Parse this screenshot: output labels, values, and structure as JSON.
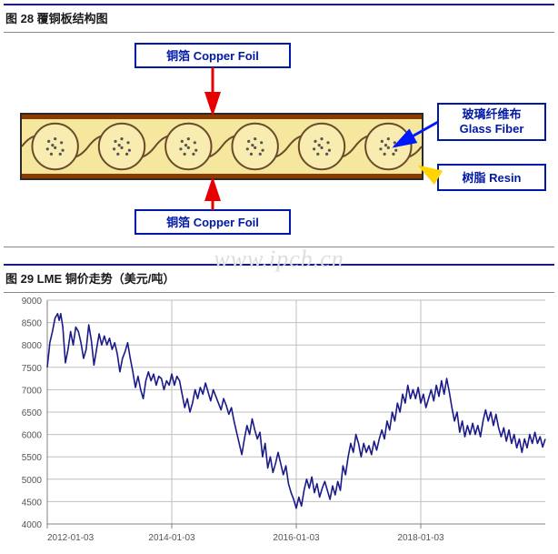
{
  "figure28": {
    "title": "图 28  覆铜板结构图",
    "labels": {
      "copper_top": "铜箔 Copper Foil",
      "copper_bottom": "铜箔 Copper Foil",
      "glass_fiber_zh": "玻璃纤维布",
      "glass_fiber_en": "Glass Fiber",
      "resin_zh": "树脂",
      "resin_en": "Resin"
    },
    "colors": {
      "label_border": "#0018a8",
      "label_text": "#0018a8",
      "arrow_red": "#e60000",
      "arrow_blue": "#0018ff",
      "arrow_yellow": "#ffd400",
      "copper_line": "#8b3a00",
      "resin_fill": "#f5e79e",
      "resin_inner": "#f8ecb0",
      "laminate_border": "#2a2a2a",
      "fiber_line": "#6b4a2a",
      "dot_fill": "#555"
    }
  },
  "figure29": {
    "title": "图 29  LME 铜价走势（美元/吨）",
    "watermark": "www.ipcb.cn",
    "chart": {
      "type": "line",
      "ylim": [
        4000,
        9000
      ],
      "ytick_step": 500,
      "yticks": [
        4000,
        4500,
        5000,
        5500,
        6000,
        6500,
        7000,
        7500,
        8000,
        8500,
        9000
      ],
      "xticks": [
        "2012-01-03",
        "2014-01-03",
        "2016-01-03",
        "2018-01-03"
      ],
      "x_start": "2012-01-03",
      "x_end": "2019-12-31",
      "line_color": "#1a1a8a",
      "line_width": 1.6,
      "grid_color": "#bfbfbf",
      "axis_color": "#808080",
      "background": "#ffffff",
      "label_fontsize": 10,
      "series": [
        [
          0,
          7500
        ],
        [
          0.5,
          8050
        ],
        [
          1,
          8300
        ],
        [
          1.5,
          8600
        ],
        [
          2,
          8700
        ],
        [
          2.3,
          8550
        ],
        [
          2.6,
          8700
        ],
        [
          3,
          8400
        ],
        [
          3.5,
          7600
        ],
        [
          4,
          7900
        ],
        [
          4.5,
          8300
        ],
        [
          5,
          8000
        ],
        [
          5.5,
          8400
        ],
        [
          6,
          8300
        ],
        [
          6.5,
          8050
        ],
        [
          7,
          7700
        ],
        [
          7.5,
          7900
        ],
        [
          8,
          8450
        ],
        [
          8.5,
          8100
        ],
        [
          9,
          7550
        ],
        [
          9.5,
          7900
        ],
        [
          10,
          8250
        ],
        [
          10.5,
          8000
        ],
        [
          11,
          8200
        ],
        [
          11.5,
          8000
        ],
        [
          12,
          8150
        ],
        [
          12.5,
          7900
        ],
        [
          13,
          8050
        ],
        [
          13.5,
          7800
        ],
        [
          14,
          7400
        ],
        [
          14.5,
          7700
        ],
        [
          15,
          7850
        ],
        [
          15.5,
          8050
        ],
        [
          16,
          7700
        ],
        [
          16.5,
          7400
        ],
        [
          17,
          7050
        ],
        [
          17.5,
          7300
        ],
        [
          18,
          7000
        ],
        [
          18.5,
          6800
        ],
        [
          19,
          7200
        ],
        [
          19.5,
          7400
        ],
        [
          20,
          7200
        ],
        [
          20.5,
          7350
        ],
        [
          21,
          7100
        ],
        [
          21.5,
          7300
        ],
        [
          22,
          7250
        ],
        [
          22.5,
          7000
        ],
        [
          23,
          7200
        ],
        [
          23.5,
          7100
        ],
        [
          24,
          7350
        ],
        [
          24.5,
          7100
        ],
        [
          25,
          7300
        ],
        [
          25.5,
          7200
        ],
        [
          26,
          6900
        ],
        [
          26.5,
          6600
        ],
        [
          27,
          6800
        ],
        [
          27.5,
          6500
        ],
        [
          28,
          6700
        ],
        [
          28.5,
          7000
        ],
        [
          29,
          6800
        ],
        [
          29.5,
          7050
        ],
        [
          30,
          6900
        ],
        [
          30.5,
          7150
        ],
        [
          31,
          6950
        ],
        [
          31.5,
          6750
        ],
        [
          32,
          7000
        ],
        [
          32.5,
          6850
        ],
        [
          33,
          6700
        ],
        [
          33.5,
          6550
        ],
        [
          34,
          6800
        ],
        [
          34.5,
          6650
        ],
        [
          35,
          6450
        ],
        [
          35.5,
          6600
        ],
        [
          36,
          6300
        ],
        [
          36.5,
          6050
        ],
        [
          37,
          5800
        ],
        [
          37.5,
          5550
        ],
        [
          38,
          5900
        ],
        [
          38.5,
          6200
        ],
        [
          39,
          6000
        ],
        [
          39.5,
          6350
        ],
        [
          40,
          6100
        ],
        [
          40.5,
          5900
        ],
        [
          41,
          6050
        ],
        [
          41.5,
          5500
        ],
        [
          42,
          5800
        ],
        [
          42.5,
          5250
        ],
        [
          43,
          5500
        ],
        [
          43.5,
          5150
        ],
        [
          44,
          5350
        ],
        [
          44.5,
          5600
        ],
        [
          45,
          5350
        ],
        [
          45.5,
          5100
        ],
        [
          46,
          5300
        ],
        [
          46.5,
          4900
        ],
        [
          47,
          4700
        ],
        [
          47.5,
          4550
        ],
        [
          48,
          4350
        ],
        [
          48.5,
          4600
        ],
        [
          49,
          4400
        ],
        [
          49.5,
          4750
        ],
        [
          50,
          5000
        ],
        [
          50.5,
          4800
        ],
        [
          51,
          5050
        ],
        [
          51.5,
          4700
        ],
        [
          52,
          4900
        ],
        [
          52.5,
          4600
        ],
        [
          53,
          4800
        ],
        [
          53.5,
          4950
        ],
        [
          54,
          4750
        ],
        [
          54.5,
          4550
        ],
        [
          55,
          4850
        ],
        [
          55.5,
          4650
        ],
        [
          56,
          4950
        ],
        [
          56.5,
          4750
        ],
        [
          57,
          5300
        ],
        [
          57.5,
          5100
        ],
        [
          58,
          5500
        ],
        [
          58.5,
          5800
        ],
        [
          59,
          5600
        ],
        [
          59.5,
          6000
        ],
        [
          60,
          5800
        ],
        [
          60.5,
          5500
        ],
        [
          61,
          5800
        ],
        [
          61.5,
          5600
        ],
        [
          62,
          5750
        ],
        [
          62.5,
          5550
        ],
        [
          63,
          5850
        ],
        [
          63.5,
          5650
        ],
        [
          64,
          5900
        ],
        [
          64.5,
          6100
        ],
        [
          65,
          5900
        ],
        [
          65.5,
          6300
        ],
        [
          66,
          6100
        ],
        [
          66.5,
          6500
        ],
        [
          67,
          6300
        ],
        [
          67.5,
          6700
        ],
        [
          68,
          6500
        ],
        [
          68.5,
          6900
        ],
        [
          69,
          6700
        ],
        [
          69.5,
          7100
        ],
        [
          70,
          6800
        ],
        [
          70.5,
          7000
        ],
        [
          71,
          6800
        ],
        [
          71.5,
          7050
        ],
        [
          72,
          6700
        ],
        [
          72.5,
          6900
        ],
        [
          73,
          6600
        ],
        [
          73.5,
          6800
        ],
        [
          74,
          7000
        ],
        [
          74.5,
          6750
        ],
        [
          75,
          7100
        ],
        [
          75.5,
          6850
        ],
        [
          76,
          7200
        ],
        [
          76.5,
          6900
        ],
        [
          77,
          7250
        ],
        [
          77.5,
          6950
        ],
        [
          78,
          6600
        ],
        [
          78.5,
          6300
        ],
        [
          79,
          6500
        ],
        [
          79.5,
          6050
        ],
        [
          80,
          6300
        ],
        [
          80.5,
          5950
        ],
        [
          81,
          6200
        ],
        [
          81.5,
          6000
        ],
        [
          82,
          6250
        ],
        [
          82.5,
          6000
        ],
        [
          83,
          6200
        ],
        [
          83.5,
          5950
        ],
        [
          84,
          6300
        ],
        [
          84.5,
          6550
        ],
        [
          85,
          6300
        ],
        [
          85.5,
          6500
        ],
        [
          86,
          6200
        ],
        [
          86.5,
          6450
        ],
        [
          87,
          6150
        ],
        [
          87.5,
          5950
        ],
        [
          88,
          6150
        ],
        [
          88.5,
          5850
        ],
        [
          89,
          6100
        ],
        [
          89.5,
          5800
        ],
        [
          90,
          6000
        ],
        [
          90.5,
          5700
        ],
        [
          91,
          5900
        ],
        [
          91.5,
          5600
        ],
        [
          92,
          5900
        ],
        [
          92.5,
          5700
        ],
        [
          93,
          6000
        ],
        [
          93.5,
          5800
        ],
        [
          94,
          6050
        ],
        [
          94.5,
          5800
        ],
        [
          95,
          5950
        ],
        [
          95.5,
          5720
        ],
        [
          96,
          5900
        ]
      ]
    }
  }
}
